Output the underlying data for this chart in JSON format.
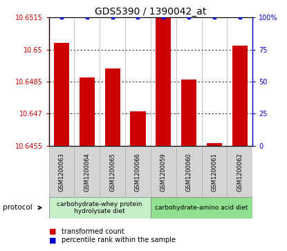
{
  "title": "GDS5390 / 1390042_at",
  "samples": [
    "GSM1200063",
    "GSM1200064",
    "GSM1200065",
    "GSM1200066",
    "GSM1200059",
    "GSM1200060",
    "GSM1200061",
    "GSM1200062"
  ],
  "red_values": [
    10.6503,
    10.6487,
    10.6491,
    10.6471,
    10.6515,
    10.6486,
    10.6456,
    10.6502
  ],
  "blue_values": [
    100,
    100,
    100,
    100,
    100,
    100,
    100,
    100
  ],
  "ylim_left": [
    10.6455,
    10.6515
  ],
  "ylim_right": [
    0,
    100
  ],
  "yticks_left": [
    10.6455,
    10.647,
    10.6485,
    10.65,
    10.6515
  ],
  "yticks_right": [
    0,
    25,
    50,
    75,
    100
  ],
  "ytick_labels_left": [
    "10.6455",
    "10.647",
    "10.6485",
    "10.65",
    "10.6515"
  ],
  "ytick_labels_right": [
    "0",
    "25",
    "50",
    "75",
    "100%"
  ],
  "protocol_groups": [
    {
      "label": "carbohydrate-whey protein\nhydrolysate diet",
      "start": 0,
      "end": 3,
      "color": "#c8f0c8"
    },
    {
      "label": "carbohydrate-amino acid diet",
      "start": 4,
      "end": 7,
      "color": "#90e090"
    }
  ],
  "bar_width": 0.6,
  "red_color": "#cc0000",
  "blue_color": "#0000cc",
  "grid_color": "#000000",
  "background_color": "#ffffff",
  "tick_color_left": "#cc0000",
  "tick_color_right": "#0000cc",
  "title_fontsize": 10,
  "tick_fontsize": 7,
  "label_fontsize": 7,
  "protocol_label": "protocol",
  "bar_bottom": 10.6455,
  "sample_fontsize": 6,
  "proto_fontsize": 6.5,
  "legend_fontsize": 7
}
